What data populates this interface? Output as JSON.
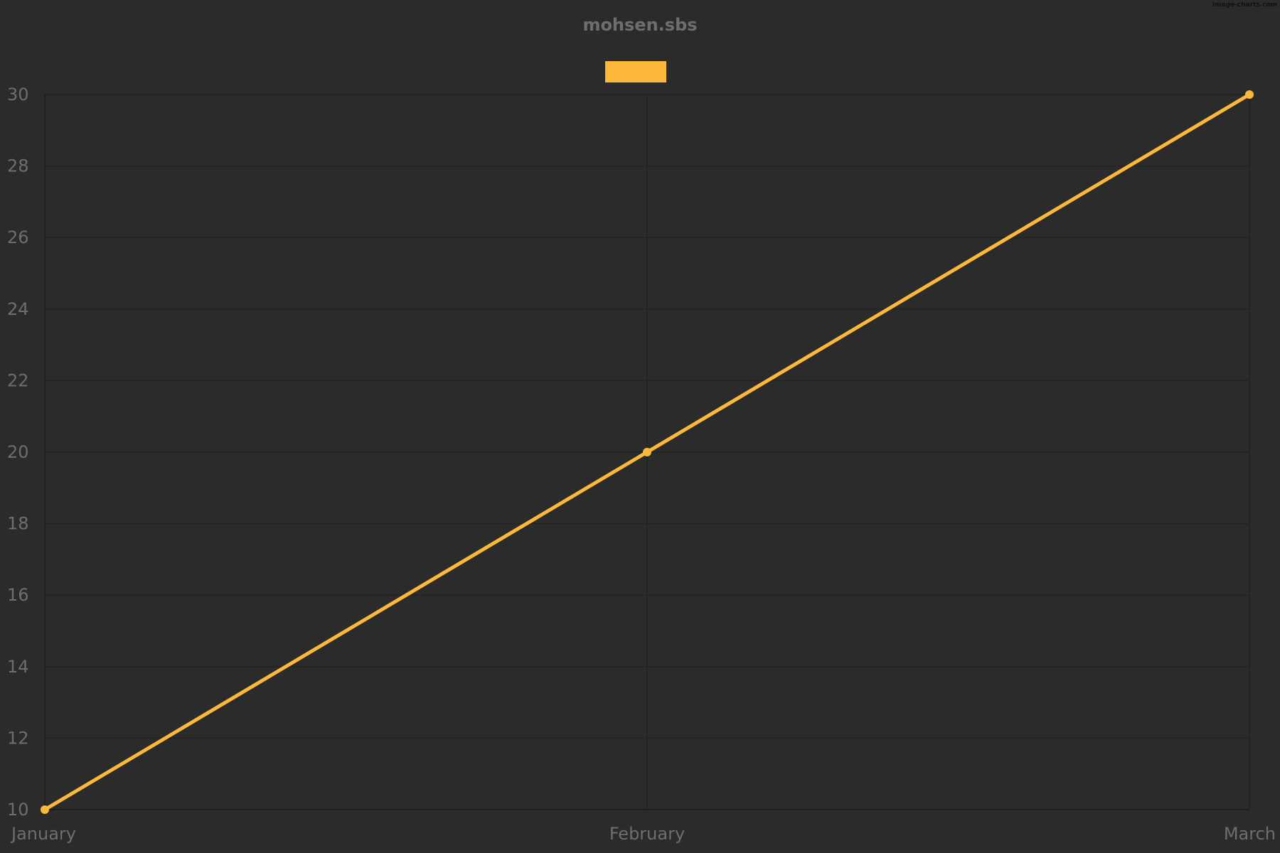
{
  "chart_data": {
    "type": "line",
    "title": "mohsen.sbs",
    "categories": [
      "January",
      "February",
      "March"
    ],
    "series": [
      {
        "values": [
          10,
          20,
          30
        ],
        "color": "#fbb83a"
      }
    ],
    "ylim": [
      10,
      30
    ],
    "y_ticks": [
      "10",
      "12",
      "14",
      "16",
      "18",
      "20",
      "22",
      "24",
      "26",
      "28",
      "30"
    ],
    "grid": true,
    "legend": "top-center"
  },
  "watermark": "image-charts.com",
  "colors": {
    "background": "#2b2b2b",
    "grid": "#232323",
    "text": "#6e6e6e",
    "series": "#fbb83a"
  }
}
